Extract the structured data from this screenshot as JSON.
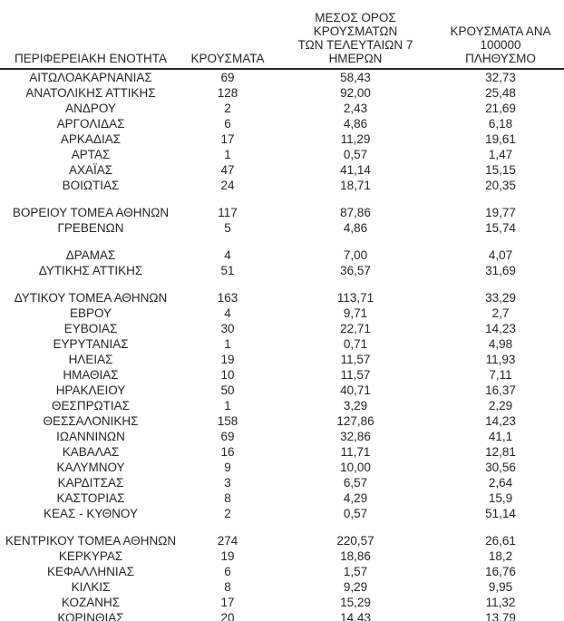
{
  "table": {
    "headers": {
      "region": "ΠΕΡΙΦΕΡΕΙΑΚΗ ΕΝΟΤΗΤΑ",
      "cases": "ΚΡΟΥΣΜΑΤΑ",
      "avg_7day": "ΜΕΣΟΣ ΟΡΟΣ ΚΡΟΥΣΜΑΤΩΝ\nΤΩΝ ΤΕΛΕΥΤΑΙΩΝ 7\nΗΜΕΡΩΝ",
      "per_100k": "ΚΡΟΥΣΜΑΤΑ ΑΝΑ 100000\nΠΛΗΘΥΣΜΟ"
    },
    "groups": [
      {
        "rows": [
          {
            "region": "ΑΙΤΩΛΟΑΚΑΡΝΑΝΙΑΣ",
            "cases": "69",
            "avg_7day": "58,43",
            "per_100k": "32,73"
          },
          {
            "region": "ΑΝΑΤΟΛΙΚΗΣ ΑΤΤΙΚΗΣ",
            "cases": "128",
            "avg_7day": "92,00",
            "per_100k": "25,48"
          },
          {
            "region": "ΑΝΔΡΟΥ",
            "cases": "2",
            "avg_7day": "2,43",
            "per_100k": "21,69"
          },
          {
            "region": "ΑΡΓΟΛΙΔΑΣ",
            "cases": "6",
            "avg_7day": "4,86",
            "per_100k": "6,18"
          },
          {
            "region": "ΑΡΚΑΔΙΑΣ",
            "cases": "17",
            "avg_7day": "11,29",
            "per_100k": "19,61"
          },
          {
            "region": "ΑΡΤΑΣ",
            "cases": "1",
            "avg_7day": "0,57",
            "per_100k": "1,47"
          },
          {
            "region": "ΑΧΑΪΑΣ",
            "cases": "47",
            "avg_7day": "41,14",
            "per_100k": "15,15"
          },
          {
            "region": "ΒΟΙΩΤΙΑΣ",
            "cases": "24",
            "avg_7day": "18,71",
            "per_100k": "20,35"
          }
        ]
      },
      {
        "rows": [
          {
            "region": "ΒΟΡΕΙΟΥ ΤΟΜΕΑ ΑΘΗΝΩΝ",
            "cases": "117",
            "avg_7day": "87,86",
            "per_100k": "19,77"
          },
          {
            "region": "ΓΡΕΒΕΝΩΝ",
            "cases": "5",
            "avg_7day": "4,86",
            "per_100k": "15,74"
          }
        ]
      },
      {
        "rows": [
          {
            "region": "ΔΡΑΜΑΣ",
            "cases": "4",
            "avg_7day": "7,00",
            "per_100k": "4,07"
          },
          {
            "region": "ΔΥΤΙΚΗΣ ΑΤΤΙΚΗΣ",
            "cases": "51",
            "avg_7day": "36,57",
            "per_100k": "31,69"
          }
        ]
      },
      {
        "rows": [
          {
            "region": "ΔΥΤΙΚΟΥ ΤΟΜΕΑ ΑΘΗΝΩΝ",
            "cases": "163",
            "avg_7day": "113,71",
            "per_100k": "33,29"
          },
          {
            "region": "ΕΒΡΟΥ",
            "cases": "4",
            "avg_7day": "9,71",
            "per_100k": "2,7"
          },
          {
            "region": "ΕΥΒΟΙΑΣ",
            "cases": "30",
            "avg_7day": "22,71",
            "per_100k": "14,23"
          },
          {
            "region": "ΕΥΡΥΤΑΝΙΑΣ",
            "cases": "1",
            "avg_7day": "0,71",
            "per_100k": "4,98"
          },
          {
            "region": "ΗΛΕΙΑΣ",
            "cases": "19",
            "avg_7day": "11,57",
            "per_100k": "11,93"
          },
          {
            "region": "ΗΜΑΘΙΑΣ",
            "cases": "10",
            "avg_7day": "11,57",
            "per_100k": "7,11"
          },
          {
            "region": "ΗΡΑΚΛΕΙΟΥ",
            "cases": "50",
            "avg_7day": "40,71",
            "per_100k": "16,37"
          },
          {
            "region": "ΘΕΣΠΡΩΤΙΑΣ",
            "cases": "1",
            "avg_7day": "3,29",
            "per_100k": "2,29"
          },
          {
            "region": "ΘΕΣΣΑΛΟΝΙΚΗΣ",
            "cases": "158",
            "avg_7day": "127,86",
            "per_100k": "14,23"
          },
          {
            "region": "ΙΩΑΝΝΙΝΩΝ",
            "cases": "69",
            "avg_7day": "32,86",
            "per_100k": "41,1"
          },
          {
            "region": "ΚΑΒΑΛΑΣ",
            "cases": "16",
            "avg_7day": "11,71",
            "per_100k": "12,81"
          },
          {
            "region": "ΚΑΛΥΜΝΟΥ",
            "cases": "9",
            "avg_7day": "10,00",
            "per_100k": "30,56"
          },
          {
            "region": "ΚΑΡΔΙΤΣΑΣ",
            "cases": "3",
            "avg_7day": "6,57",
            "per_100k": "2,64"
          },
          {
            "region": "ΚΑΣΤΟΡΙΑΣ",
            "cases": "8",
            "avg_7day": "4,29",
            "per_100k": "15,9"
          },
          {
            "region": "ΚΕΑΣ - ΚΥΘΝΟΥ",
            "cases": "2",
            "avg_7day": "0,57",
            "per_100k": "51,14"
          }
        ]
      },
      {
        "rows": [
          {
            "region": "ΚΕΝΤΡΙΚΟΥ ΤΟΜΕΑ ΑΘΗΝΩΝ",
            "cases": "274",
            "avg_7day": "220,57",
            "per_100k": "26,61"
          },
          {
            "region": "ΚΕΡΚΥΡΑΣ",
            "cases": "19",
            "avg_7day": "18,86",
            "per_100k": "18,2"
          },
          {
            "region": "ΚΕΦΑΛΛΗΝΙΑΣ",
            "cases": "6",
            "avg_7day": "1,57",
            "per_100k": "16,76"
          },
          {
            "region": "ΚΙΛΚΙΣ",
            "cases": "8",
            "avg_7day": "9,29",
            "per_100k": "9,95"
          },
          {
            "region": "ΚΟΖΑΝΗΣ",
            "cases": "17",
            "avg_7day": "15,29",
            "per_100k": "11,32"
          },
          {
            "region": "ΚΟΡΙΝΘΙΑΣ",
            "cases": "20",
            "avg_7day": "14,43",
            "per_100k": "13,79"
          }
        ]
      }
    ]
  },
  "colors": {
    "text": "#262626",
    "rule": "#262626",
    "background": "#ffffff"
  }
}
